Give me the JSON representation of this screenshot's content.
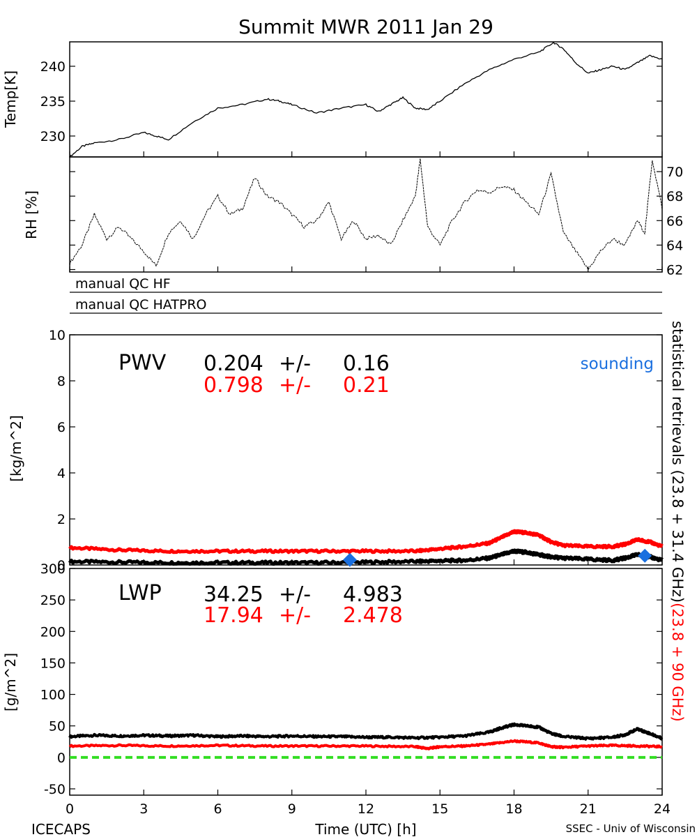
{
  "title": "Summit MWR 2011 Jan 29",
  "footer": {
    "left": "ICECAPS",
    "center": "Time (UTC) [h]",
    "right": "SSEC - Univ of Wisconsin"
  },
  "colors": {
    "retrieval_23_31": "#000000",
    "retrieval_23_90": "#ff0000",
    "sounding": "#1a6fdf",
    "zero_line": "#33dd22"
  },
  "right_labels": {
    "part1": "statistical retrievals (23.8 + 31.4 GHz)",
    "part2": "(23.8 + 90 GHz)"
  },
  "qc_rows": [
    "manual QC HF",
    "manual QC HATPRO"
  ],
  "chart_data": [
    {
      "type": "line",
      "panel": "temperature",
      "ylabel": "Temp[K]",
      "xlim": [
        0,
        24
      ],
      "ylim": [
        227,
        243.5
      ],
      "yticks": [
        230,
        235,
        240
      ],
      "series": [
        {
          "color": "#000000",
          "x": [
            0,
            0.5,
            1,
            2,
            3,
            3.5,
            4,
            5,
            6,
            7,
            8,
            8.5,
            9,
            10,
            11,
            12,
            12.5,
            13,
            13.5,
            14,
            14.5,
            15,
            16,
            17,
            18,
            19,
            19.6,
            20,
            20.5,
            21,
            21.5,
            22,
            22.5,
            23,
            23.5,
            24
          ],
          "y": [
            227,
            228.5,
            229,
            229.5,
            230.5,
            230,
            229.5,
            232,
            234,
            234.5,
            235.3,
            235,
            234.5,
            233.3,
            234,
            234.5,
            233.5,
            234.5,
            235.5,
            234,
            233.8,
            235,
            237.5,
            239.5,
            241,
            242,
            243.4,
            242.5,
            240.5,
            239,
            239.5,
            240,
            239.5,
            240.5,
            241.5,
            241
          ]
        }
      ]
    },
    {
      "type": "line",
      "panel": "relative-humidity",
      "ylabel": "RH [%]",
      "xlim": [
        0,
        24
      ],
      "ylim": [
        61.8,
        71.2
      ],
      "yticks": [
        62,
        64,
        66,
        68,
        70
      ],
      "series": [
        {
          "color": "#000000",
          "x": [
            0,
            0.5,
            1,
            1.5,
            2,
            2.5,
            3,
            3.5,
            4,
            4.5,
            5,
            5.5,
            6,
            6.5,
            7,
            7.5,
            8,
            8.5,
            9,
            9.5,
            10,
            10.5,
            11,
            11.5,
            12,
            12.5,
            13,
            13.5,
            14,
            14.2,
            14.5,
            15,
            15.5,
            16,
            16.5,
            17,
            17.5,
            18,
            18.5,
            19,
            19.5,
            20,
            20.5,
            21,
            21.5,
            22,
            22.5,
            23,
            23.3,
            23.6,
            24
          ],
          "y": [
            62.5,
            64,
            66.5,
            64.5,
            65.5,
            64.5,
            63.5,
            62.3,
            65,
            66,
            64.5,
            66.5,
            68,
            66.5,
            67,
            69.5,
            68,
            67.5,
            66.5,
            65.5,
            66,
            67.5,
            64.5,
            66,
            64.5,
            64.8,
            64,
            66,
            68,
            71,
            65.5,
            64,
            66,
            67.5,
            68.5,
            68.3,
            68.8,
            68.5,
            67.5,
            66.5,
            69.8,
            65,
            63.5,
            62,
            63.5,
            64.5,
            64,
            66,
            65,
            71,
            67
          ]
        }
      ]
    },
    {
      "type": "line",
      "panel": "pwv",
      "ylabel": "[kg/m^2]",
      "xlim": [
        0,
        24
      ],
      "ylim": [
        0,
        10
      ],
      "yticks": [
        0,
        2,
        4,
        6,
        8,
        10
      ],
      "label": "PWV",
      "stats": [
        {
          "color": "#000000",
          "mean": "0.204",
          "pm": "+/-",
          "std": "0.16"
        },
        {
          "color": "#ff0000",
          "mean": "0.798",
          "pm": "+/-",
          "std": "0.21"
        }
      ],
      "legend": "sounding",
      "series": [
        {
          "color": "#ff0000",
          "x": [
            0,
            2,
            4,
            6,
            8,
            10,
            12,
            14,
            15,
            16,
            17,
            17.5,
            18,
            18.5,
            19,
            19.5,
            20,
            21,
            22,
            22.5,
            23,
            23.5,
            24
          ],
          "y": [
            0.75,
            0.65,
            0.6,
            0.6,
            0.6,
            0.6,
            0.6,
            0.6,
            0.7,
            0.8,
            0.95,
            1.2,
            1.45,
            1.4,
            1.3,
            1.0,
            0.85,
            0.8,
            0.8,
            0.9,
            1.1,
            1.0,
            0.8
          ]
        },
        {
          "color": "#000000",
          "x": [
            0,
            2,
            4,
            6,
            8,
            10,
            12,
            14,
            15,
            16,
            17,
            17.5,
            18,
            18.5,
            19,
            19.5,
            20,
            21,
            22,
            22.5,
            23,
            23.5,
            24
          ],
          "y": [
            0.15,
            0.12,
            0.1,
            0.1,
            0.1,
            0.1,
            0.12,
            0.15,
            0.18,
            0.2,
            0.3,
            0.45,
            0.6,
            0.55,
            0.45,
            0.35,
            0.3,
            0.25,
            0.2,
            0.3,
            0.45,
            0.35,
            0.2
          ]
        }
      ],
      "points": {
        "color": "#1a6fdf",
        "x": [
          11.35,
          23.3
        ],
        "y": [
          0.22,
          0.4
        ]
      }
    },
    {
      "type": "line",
      "panel": "lwp",
      "ylabel": "[g/m^2]",
      "xlabel": "Time (UTC) [h]",
      "xlim": [
        0,
        24
      ],
      "ylim": [
        -60,
        300
      ],
      "xticks": [
        0,
        3,
        6,
        9,
        12,
        15,
        18,
        21,
        24
      ],
      "yticks": [
        -50,
        0,
        50,
        100,
        150,
        200,
        250,
        300
      ],
      "label": "LWP",
      "stats": [
        {
          "color": "#000000",
          "mean": "34.25",
          "pm": "+/-",
          "std": "4.983"
        },
        {
          "color": "#ff0000",
          "mean": "17.94",
          "pm": "+/-",
          "std": "2.478"
        }
      ],
      "series": [
        {
          "color": "#000000",
          "x": [
            0,
            1,
            2,
            3,
            4,
            5,
            6,
            7,
            8,
            9,
            10,
            11,
            12,
            13,
            14,
            15,
            16,
            17,
            17.5,
            18,
            18.5,
            19,
            19.5,
            20,
            21,
            22,
            22.5,
            23,
            23.5,
            24
          ],
          "y": [
            33,
            35,
            34,
            35,
            34,
            35,
            33,
            34,
            33,
            34,
            33,
            33,
            32,
            32,
            31,
            32,
            34,
            40,
            47,
            52,
            50,
            48,
            38,
            33,
            30,
            32,
            36,
            45,
            38,
            30
          ]
        },
        {
          "color": "#ff0000",
          "x": [
            0,
            2,
            4,
            6,
            8,
            10,
            12,
            14,
            14.5,
            15,
            16,
            17,
            18,
            19,
            19.5,
            20,
            21,
            22,
            23,
            24
          ],
          "y": [
            18,
            19,
            18,
            19,
            18,
            18,
            18,
            17,
            14,
            17,
            18,
            21,
            26,
            23,
            17,
            16,
            18,
            19,
            18,
            17
          ]
        }
      ],
      "zero_line": {
        "color": "#33dd22",
        "y": 0
      }
    }
  ]
}
